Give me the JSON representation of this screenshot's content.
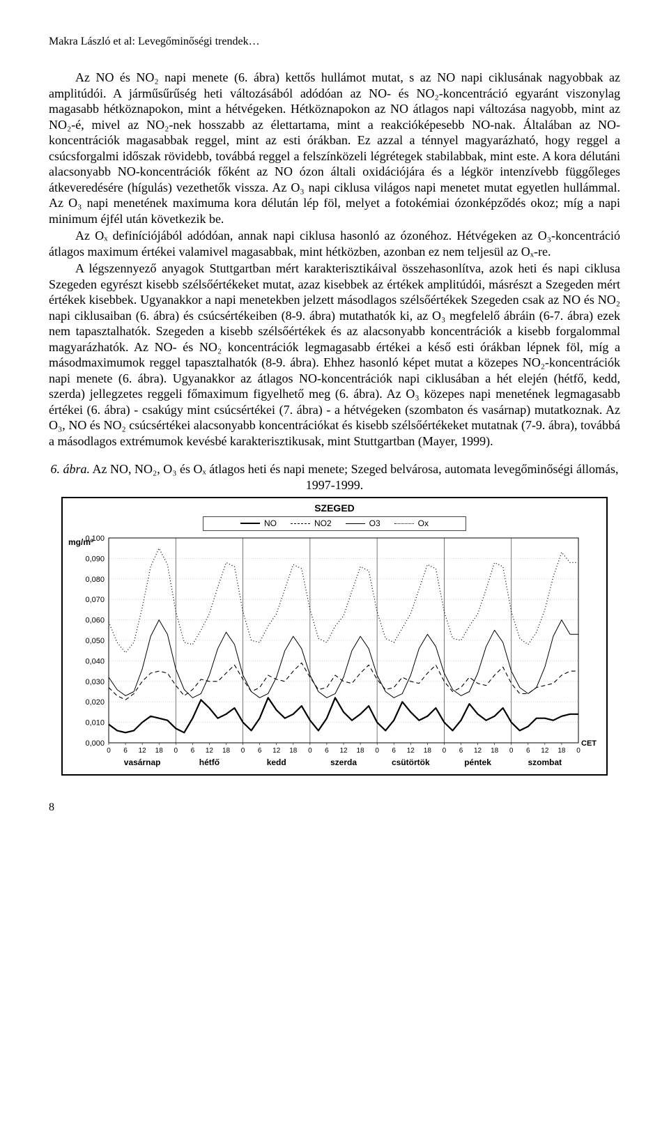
{
  "running_head": "Makra László et al: Levegőminőségi trendek…",
  "para1": "Az NO és NO₂ napi menete (6. ábra) kettős hullámot mutat, s az NO napi ciklusának nagyobbak az amplitúdói. A járműsűrűség heti változásából adódóan az NO- és NO₂-koncentráció egyaránt viszonylag magasabb hétköznapokon, mint a hétvégeken. Hétköznapokon az NO átlagos napi változása nagyobb, mint az NO₂-é, mivel az NO₂-nek hosszabb az élettartama, mint a reakcióképesebb NO-nak. Általában az NO-koncentrációk magasabbak reggel, mint az esti órákban. Ez azzal a ténnyel magyarázható, hogy reggel a csúcsforgalmi időszak rövidebb, továbbá reggel a felszínközeli légrétegek stabilabbak, mint este. A kora délutáni alacsonyabb NO-koncentrációk főként az NO ózon általi oxidációjára és a légkör intenzívebb függőleges átkeveredésére (hígulás) vezethetők vissza. Az O₃ napi ciklusa világos napi menetet mutat egyetlen hullámmal. Az O₃ napi menetének maximuma kora délután lép föl, melyet a fotokémiai ózonképződés okoz; míg a napi minimum éjfél után következik be.",
  "para2": "Az Oₓ definíciójából adódóan, annak napi ciklusa hasonló az ózonéhoz. Hétvégeken az O₃-koncentráció átlagos maximum értékei valamivel magasabbak, mint hétközben, azonban ez nem teljesül az Oₓ-re.",
  "para3": "A légszennyező anyagok Stuttgartban mért karakterisztikáival összehasonlítva, azok heti és napi ciklusa Szegeden egyrészt kisebb szélsőértékeket mutat, azaz kisebbek az értékek amplitúdói, másrészt a Szegeden mért értékek kisebbek. Ugyanakkor a napi menetekben jelzett másodlagos szélsőértékek Szegeden csak az NO és NO₂ napi ciklusaiban (6. ábra) és csúcsértékeiben (8-9. ábra) mutathatók ki, az O₃ megfelelő ábráin (6-7. ábra) ezek nem tapasztalhatók. Szegeden a kisebb szélsőértékek és az alacsonyabb koncentrációk a kisebb forgalommal magyarázhatók. Az NO- és NO₂ koncentrációk legmagasabb értékei a késő esti órákban lépnek föl, míg a másodmaximumok reggel tapasztalhatók (8-9. ábra). Ehhez hasonló képet mutat a közepes NO₂-koncentrációk napi menete (6. ábra). Ugyanakkor az átlagos NO-koncentrációk napi ciklusában a hét elején (hétfő, kedd, szerda) jellegzetes reggeli főmaximum figyelhető meg (6. ábra). Az O₃ közepes napi menetének legmagasabb értékei (6. ábra) - csakúgy mint csúcsértékei (7. ábra) - a hétvégeken (szombaton és vasárnap) mutatkoznak. Az O₃, NO és NO₂ csúcsértékei alacsonyabb koncentrációkat és kisebb szélsőértékeket mutatnak (7-9. ábra), továbbá a másodlagos extrémumok kevésbé karakterisztikusak, mint Stuttgartban (Mayer, 1999).",
  "figcap_a": "6. ábra.",
  "figcap_b": " Az NO, NO₂, O₃ és Oₓ átlagos heti és napi menete; Szeged belvárosa, automata levegőminőségi állomás, 1997-1999.",
  "chart": {
    "title": "SZEGED",
    "ylabel": "mg/m³",
    "xaxis_label": "CET",
    "legend": [
      {
        "label": "NO",
        "style": "solid",
        "width": 2
      },
      {
        "label": "NO2",
        "style": "dashed",
        "width": 1
      },
      {
        "label": "O3",
        "style": "solid",
        "width": 1
      },
      {
        "label": "Ox",
        "style": "dotted",
        "width": 1
      }
    ],
    "yticks": [
      "0,000",
      "0,010",
      "0,020",
      "0,030",
      "0,040",
      "0,050",
      "0,060",
      "0,070",
      "0,080",
      "0,090",
      "0,100"
    ],
    "ylim": [
      0,
      0.1
    ],
    "day_labels": [
      "vasárnap",
      "hétfő",
      "kedd",
      "szerda",
      "csütörtök",
      "péntek",
      "szombat"
    ],
    "hour_ticks": [
      0,
      6,
      12,
      18
    ],
    "colors": {
      "axis": "#000000",
      "grid": "#bdbdbd",
      "day_divider": "#555555",
      "background": "#ffffff",
      "series": "#000000"
    },
    "fontsize": {
      "title": 14,
      "tick": 11,
      "legend": 12,
      "ylabel": 12
    },
    "series": {
      "NO": [
        0.009,
        0.006,
        0.005,
        0.006,
        0.01,
        0.013,
        0.012,
        0.011,
        0.007,
        0.005,
        0.012,
        0.021,
        0.017,
        0.012,
        0.014,
        0.017,
        0.01,
        0.006,
        0.012,
        0.022,
        0.016,
        0.012,
        0.014,
        0.018,
        0.011,
        0.006,
        0.012,
        0.022,
        0.015,
        0.011,
        0.014,
        0.018,
        0.01,
        0.006,
        0.011,
        0.02,
        0.015,
        0.011,
        0.013,
        0.017,
        0.01,
        0.006,
        0.011,
        0.019,
        0.014,
        0.011,
        0.013,
        0.017,
        0.01,
        0.006,
        0.008,
        0.012,
        0.012,
        0.011,
        0.013,
        0.014
      ],
      "NO2": [
        0.027,
        0.023,
        0.021,
        0.024,
        0.03,
        0.034,
        0.035,
        0.034,
        0.028,
        0.023,
        0.026,
        0.031,
        0.03,
        0.03,
        0.034,
        0.038,
        0.031,
        0.025,
        0.027,
        0.033,
        0.031,
        0.03,
        0.035,
        0.039,
        0.032,
        0.026,
        0.027,
        0.033,
        0.03,
        0.029,
        0.034,
        0.038,
        0.031,
        0.026,
        0.027,
        0.032,
        0.03,
        0.029,
        0.034,
        0.038,
        0.03,
        0.025,
        0.027,
        0.032,
        0.029,
        0.028,
        0.033,
        0.037,
        0.029,
        0.024,
        0.024,
        0.027,
        0.028,
        0.029,
        0.033,
        0.035
      ],
      "O3": [
        0.032,
        0.026,
        0.023,
        0.025,
        0.036,
        0.052,
        0.06,
        0.053,
        0.036,
        0.026,
        0.022,
        0.024,
        0.033,
        0.046,
        0.054,
        0.048,
        0.033,
        0.025,
        0.022,
        0.024,
        0.032,
        0.045,
        0.052,
        0.046,
        0.033,
        0.025,
        0.022,
        0.024,
        0.032,
        0.045,
        0.052,
        0.046,
        0.033,
        0.025,
        0.022,
        0.024,
        0.033,
        0.046,
        0.053,
        0.047,
        0.034,
        0.026,
        0.023,
        0.025,
        0.034,
        0.047,
        0.055,
        0.049,
        0.035,
        0.027,
        0.024,
        0.027,
        0.037,
        0.052,
        0.06,
        0.053
      ],
      "Ox": [
        0.059,
        0.049,
        0.044,
        0.049,
        0.066,
        0.086,
        0.095,
        0.087,
        0.064,
        0.049,
        0.048,
        0.055,
        0.063,
        0.076,
        0.088,
        0.086,
        0.064,
        0.05,
        0.049,
        0.057,
        0.063,
        0.075,
        0.087,
        0.085,
        0.065,
        0.051,
        0.049,
        0.057,
        0.062,
        0.074,
        0.086,
        0.084,
        0.064,
        0.051,
        0.049,
        0.056,
        0.063,
        0.075,
        0.087,
        0.085,
        0.064,
        0.051,
        0.05,
        0.057,
        0.063,
        0.075,
        0.088,
        0.086,
        0.064,
        0.051,
        0.048,
        0.054,
        0.065,
        0.081,
        0.093,
        0.088
      ]
    }
  },
  "pagenum": "8"
}
